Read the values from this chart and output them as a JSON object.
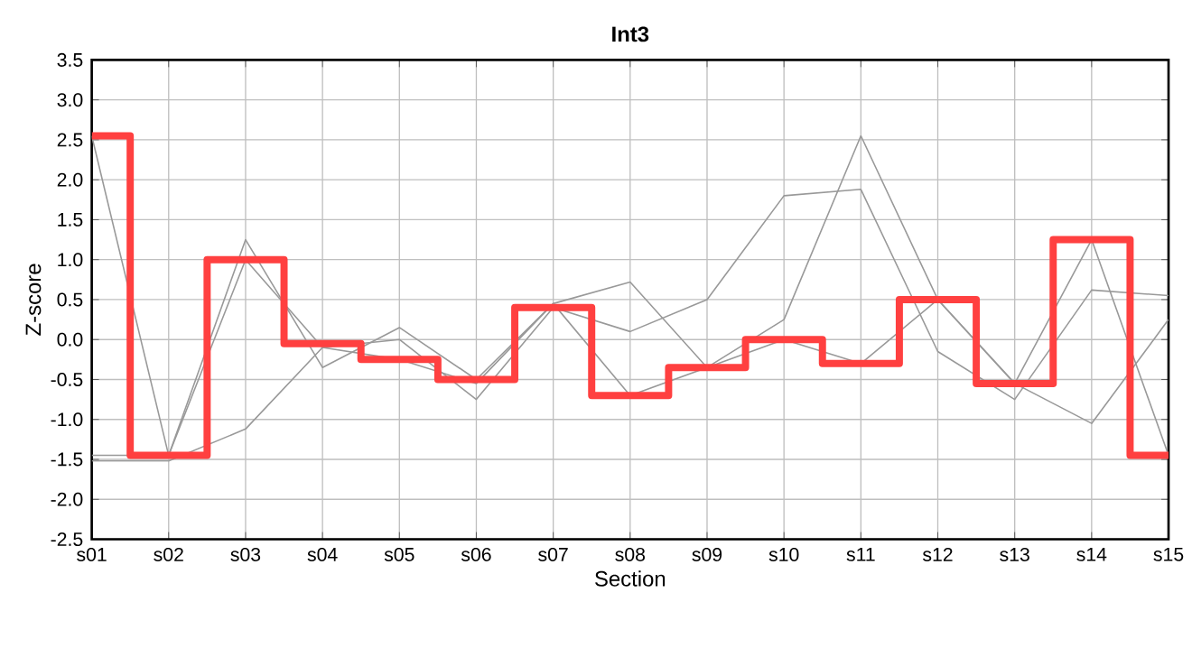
{
  "chart_data": {
    "type": "line",
    "title": "Int3",
    "xlabel": "Section",
    "ylabel": "Z-score",
    "categories": [
      "s01",
      "s02",
      "s03",
      "s04",
      "s05",
      "s06",
      "s07",
      "s08",
      "s09",
      "s10",
      "s11",
      "s12",
      "s13",
      "s14",
      "s15"
    ],
    "series": [
      {
        "color": "#999999",
        "values": [
          2.55,
          -1.45,
          1.25,
          -0.35,
          0.15,
          -0.5,
          0.45,
          -0.7,
          -0.35,
          0.25,
          2.55,
          0.5,
          -0.55,
          1.25,
          -1.45
        ]
      },
      {
        "color": "#999999",
        "values": [
          -1.45,
          -1.45,
          1.0,
          -0.1,
          0.0,
          -0.75,
          0.4,
          0.1,
          0.5,
          1.8,
          1.88,
          -0.15,
          -0.75,
          0.62,
          0.55
        ]
      },
      {
        "color": "#999999",
        "values": [
          -1.52,
          -1.52,
          -1.12,
          -0.1,
          -0.25,
          -0.55,
          0.45,
          0.72,
          -0.35,
          0.0,
          -0.3,
          0.5,
          -0.55,
          -1.05,
          0.25
        ]
      },
      {
        "type": "step",
        "color": "#ff4040",
        "values": [
          2.55,
          -1.45,
          1.0,
          -0.05,
          -0.25,
          -0.5,
          0.4,
          -0.7,
          -0.35,
          0.0,
          -0.3,
          0.5,
          -0.55,
          1.25,
          -1.45
        ]
      }
    ],
    "ylim": [
      -2.5,
      3.5
    ],
    "yticks": [
      {
        "value": -2.5,
        "label": "-2.5"
      },
      {
        "value": -2.0,
        "label": "-2.0"
      },
      {
        "value": -1.5,
        "label": "-1.5"
      },
      {
        "value": -1.0,
        "label": "-1.0"
      },
      {
        "value": -0.5,
        "label": "-0.5"
      },
      {
        "value": 0.0,
        "label": "0.0"
      },
      {
        "value": 0.5,
        "label": "0.5"
      },
      {
        "value": 1.0,
        "label": "1.0"
      },
      {
        "value": 1.5,
        "label": "1.5"
      },
      {
        "value": 2.0,
        "label": "2.0"
      },
      {
        "value": 2.5,
        "label": "2.5"
      },
      {
        "value": 3.0,
        "label": "3.0"
      },
      {
        "value": 3.5,
        "label": "3.5"
      }
    ],
    "grid": true,
    "marker": "none",
    "line_style": "solid"
  }
}
